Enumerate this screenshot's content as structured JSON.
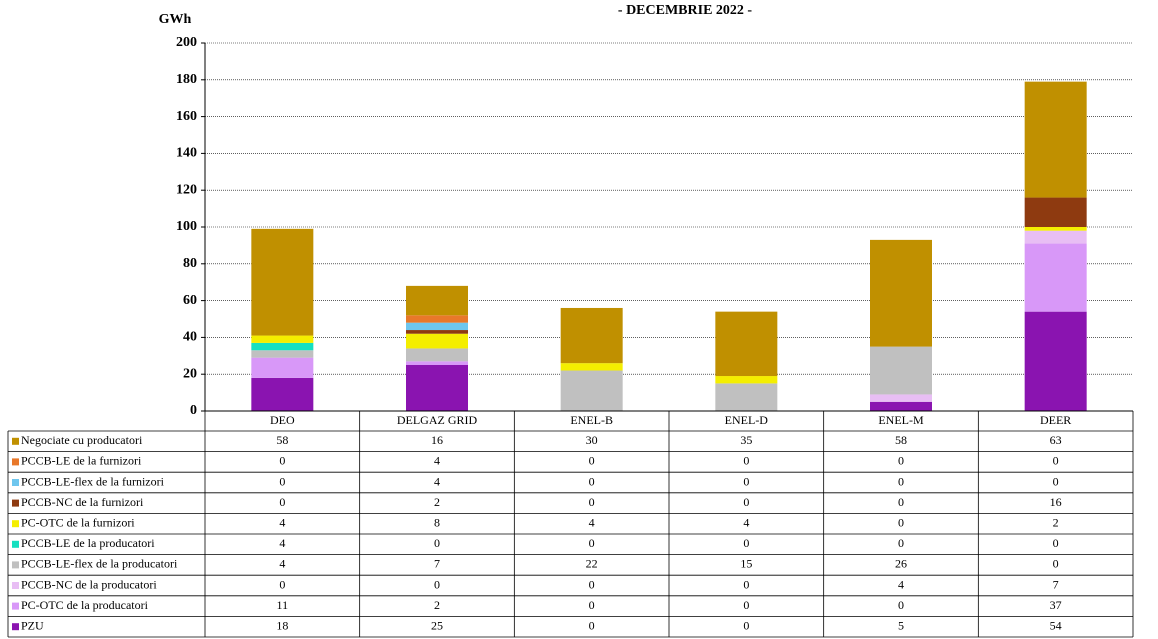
{
  "chart_data": {
    "type": "stacked_bar",
    "title": "- DECEMBRIE 2022 -",
    "y_label": "GWh",
    "categories": [
      "DEO",
      "DELGAZ GRID",
      "ENEL-B",
      "ENEL-D",
      "ENEL-M",
      "DEER"
    ],
    "ylim": [
      0,
      200
    ],
    "yticks": [
      0,
      20,
      40,
      60,
      80,
      100,
      120,
      140,
      160,
      180,
      200
    ],
    "grid": true,
    "series": [
      {
        "name": "Negociate cu producatori",
        "color": "#c09000",
        "values": [
          58,
          16,
          30,
          35,
          58,
          63
        ]
      },
      {
        "name": "PCCB-LE de la furnizori",
        "color": "#e8782a",
        "values": [
          0,
          4,
          0,
          0,
          0,
          0
        ]
      },
      {
        "name": "PCCB-LE-flex de la furnizori",
        "color": "#6ec6ee",
        "values": [
          0,
          4,
          0,
          0,
          0,
          0
        ]
      },
      {
        "name": "PCCB-NC de la furnizori",
        "color": "#8e3a10",
        "values": [
          0,
          2,
          0,
          0,
          0,
          16
        ]
      },
      {
        "name": "PC-OTC de la furnizori",
        "color": "#f4ee00",
        "values": [
          4,
          8,
          4,
          4,
          0,
          2
        ]
      },
      {
        "name": "PCCB-LE de la producatori",
        "color": "#16e0c0",
        "values": [
          4,
          0,
          0,
          0,
          0,
          0
        ]
      },
      {
        "name": "PCCB-LE-flex de la producatori",
        "color": "#c0c0c0",
        "values": [
          4,
          7,
          22,
          15,
          26,
          0
        ]
      },
      {
        "name": "PCCB-NC de la producatori",
        "color": "#e8bef4",
        "values": [
          0,
          0,
          0,
          0,
          4,
          7
        ]
      },
      {
        "name": "PC-OTC de la producatori",
        "color": "#d898f8",
        "values": [
          11,
          2,
          0,
          0,
          0,
          37
        ]
      },
      {
        "name": "PZU",
        "color": "#8a14b0",
        "values": [
          18,
          25,
          0,
          0,
          5,
          54
        ]
      }
    ]
  }
}
